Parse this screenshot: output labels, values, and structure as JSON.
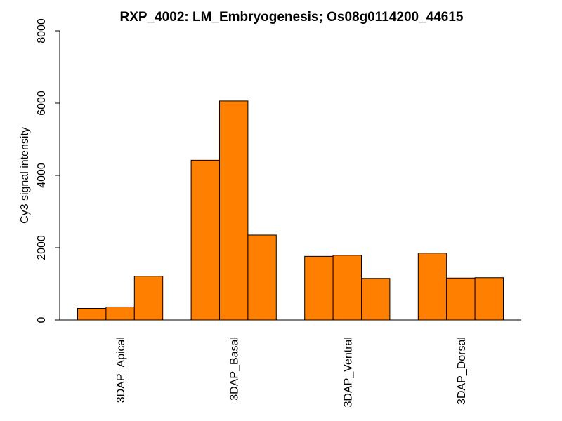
{
  "chart_data": {
    "type": "bar",
    "title": "RXP_4002: LM_Embryogenesis; Os08g0114200_44615",
    "ylabel": "Cy3 signal intensity",
    "xlabel": "",
    "ylim": [
      0,
      8000
    ],
    "yticks": [
      0,
      2000,
      4000,
      6000,
      8000
    ],
    "bar_color": "#FF7F00",
    "categories": [
      "3DAP_Apical",
      "3DAP_Basal",
      "3DAP_Ventral",
      "3DAP_Dorsal"
    ],
    "groups": [
      {
        "category": "3DAP_Apical",
        "values": [
          320,
          360,
          1210
        ]
      },
      {
        "category": "3DAP_Basal",
        "values": [
          4420,
          6060,
          2350
        ]
      },
      {
        "category": "3DAP_Ventral",
        "values": [
          1760,
          1790,
          1150
        ]
      },
      {
        "category": "3DAP_Dorsal",
        "values": [
          1850,
          1160,
          1170
        ]
      }
    ]
  }
}
